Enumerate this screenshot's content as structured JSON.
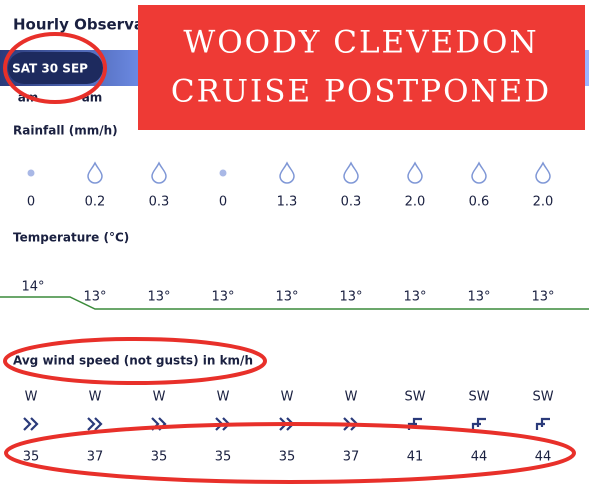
{
  "header": {
    "title": "Hourly Observa",
    "date": "SAT 30 SEP",
    "times": [
      "am",
      "am"
    ]
  },
  "banner": {
    "lines": [
      "WOODY CLEVEDON",
      "CRUISE POSTPONED"
    ]
  },
  "rainfall": {
    "label": "Rainfall (mm/h)",
    "values": [
      "0",
      "0.2",
      "0.3",
      "0",
      "1.3",
      "0.3",
      "2.0",
      "0.6",
      "2.0"
    ]
  },
  "temperature": {
    "label": "Temperature (°C)",
    "values": [
      "14°",
      "13°",
      "13°",
      "13°",
      "13°",
      "13°",
      "13°",
      "13°",
      "13°"
    ]
  },
  "wind": {
    "label": "Avg wind speed (not gusts) in km/h",
    "directions": [
      "W",
      "W",
      "W",
      "W",
      "W",
      "W",
      "SW",
      "SW",
      "SW"
    ],
    "speeds": [
      "35",
      "37",
      "35",
      "35",
      "35",
      "37",
      "41",
      "44",
      "44"
    ]
  }
}
